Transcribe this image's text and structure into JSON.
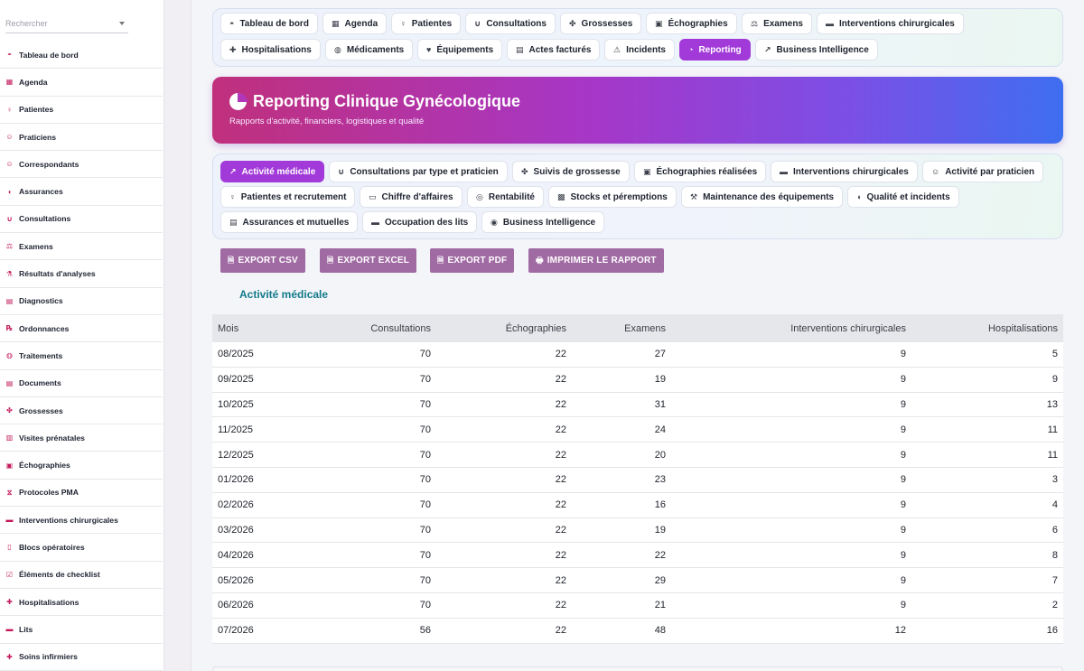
{
  "sidebar": {
    "search_placeholder": "Rechercher",
    "items": [
      {
        "label": "Tableau de bord",
        "icon": "dashboard-icon"
      },
      {
        "label": "Agenda",
        "icon": "calendar-icon"
      },
      {
        "label": "Patientes",
        "icon": "female-icon"
      },
      {
        "label": "Praticiens",
        "icon": "doctor-icon"
      },
      {
        "label": "Correspondants",
        "icon": "contact-icon"
      },
      {
        "label": "Assurances",
        "icon": "shield-icon"
      },
      {
        "label": "Consultations",
        "icon": "stethoscope-icon"
      },
      {
        "label": "Examens",
        "icon": "microscope-icon"
      },
      {
        "label": "Résultats d'analyses",
        "icon": "flask-icon"
      },
      {
        "label": "Diagnostics",
        "icon": "notes-icon"
      },
      {
        "label": "Ordonnances",
        "icon": "prescription-icon"
      },
      {
        "label": "Traitements",
        "icon": "pills-icon"
      },
      {
        "label": "Documents",
        "icon": "document-icon"
      },
      {
        "label": "Grossesses",
        "icon": "baby-icon"
      },
      {
        "label": "Visites prénatales",
        "icon": "clipboard-icon"
      },
      {
        "label": "Échographies",
        "icon": "ultrasound-icon"
      },
      {
        "label": "Protocoles PMA",
        "icon": "dna-icon"
      },
      {
        "label": "Interventions chirurgicales",
        "icon": "bed-icon"
      },
      {
        "label": "Blocs opératoires",
        "icon": "door-icon"
      },
      {
        "label": "Éléments de checklist",
        "icon": "checklist-icon"
      },
      {
        "label": "Hospitalisations",
        "icon": "hospital-icon"
      },
      {
        "label": "Lits",
        "icon": "bed-icon"
      },
      {
        "label": "Soins infirmiers",
        "icon": "nurse-icon"
      }
    ]
  },
  "topnav": {
    "items": [
      {
        "label": "Tableau de bord",
        "icon": "gauge-icon"
      },
      {
        "label": "Agenda",
        "icon": "calendar-icon"
      },
      {
        "label": "Patientes",
        "icon": "female-icon"
      },
      {
        "label": "Consultations",
        "icon": "stethoscope-icon"
      },
      {
        "label": "Grossesses",
        "icon": "baby-icon"
      },
      {
        "label": "Échographies",
        "icon": "ultrasound-icon"
      },
      {
        "label": "Examens",
        "icon": "microscope-icon"
      },
      {
        "label": "Interventions chirurgicales",
        "icon": "bed-icon"
      },
      {
        "label": "Hospitalisations",
        "icon": "hospital-icon"
      },
      {
        "label": "Médicaments",
        "icon": "pills-icon"
      },
      {
        "label": "Équipements",
        "icon": "heartbeat-icon"
      },
      {
        "label": "Actes facturés",
        "icon": "invoice-icon"
      },
      {
        "label": "Incidents",
        "icon": "warning-icon"
      },
      {
        "label": "Reporting",
        "icon": "chart-pie-icon",
        "active": true
      },
      {
        "label": "Business Intelligence",
        "icon": "chart-line-icon"
      }
    ]
  },
  "hero": {
    "title": "Reporting Clinique Gynécologique",
    "subtitle": "Rapports d'activité, financiers, logistiques et qualité",
    "icon": "chart-pie-icon"
  },
  "subnav": {
    "items": [
      {
        "label": "Activité médicale",
        "icon": "chart-line-icon",
        "active": true
      },
      {
        "label": "Consultations par type et praticien",
        "icon": "stethoscope-icon"
      },
      {
        "label": "Suivis de grossesse",
        "icon": "baby-icon"
      },
      {
        "label": "Échographies réalisées",
        "icon": "ultrasound-icon"
      },
      {
        "label": "Interventions chirurgicales",
        "icon": "bed-icon"
      },
      {
        "label": "Activité par praticien",
        "icon": "doctor-icon"
      },
      {
        "label": "Patientes et recrutement",
        "icon": "female-icon"
      },
      {
        "label": "Chiffre d'affaires",
        "icon": "money-icon"
      },
      {
        "label": "Rentabilité",
        "icon": "coins-icon"
      },
      {
        "label": "Stocks et péremptions",
        "icon": "boxes-icon"
      },
      {
        "label": "Maintenance des équipements",
        "icon": "tools-icon"
      },
      {
        "label": "Qualité et incidents",
        "icon": "shield-icon"
      },
      {
        "label": "Assurances et mutuelles",
        "icon": "invoice-icon"
      },
      {
        "label": "Occupation des lits",
        "icon": "bed-icon"
      },
      {
        "label": "Business Intelligence",
        "icon": "brain-icon"
      }
    ]
  },
  "exports": {
    "csv": "EXPORT CSV",
    "excel": "EXPORT EXCEL",
    "pdf": "EXPORT PDF",
    "print": "IMPRIMER LE RAPPORT"
  },
  "report": {
    "title": "Activité médicale",
    "columns": [
      "Mois",
      "Consultations",
      "Échographies",
      "Examens",
      "Interventions chirurgicales",
      "Hospitalisations"
    ],
    "rows": [
      [
        "08/2025",
        "70",
        "22",
        "27",
        "9",
        "5"
      ],
      [
        "09/2025",
        "70",
        "22",
        "19",
        "9",
        "9"
      ],
      [
        "10/2025",
        "70",
        "22",
        "31",
        "9",
        "13"
      ],
      [
        "11/2025",
        "70",
        "22",
        "24",
        "9",
        "11"
      ],
      [
        "12/2025",
        "70",
        "22",
        "20",
        "9",
        "11"
      ],
      [
        "01/2026",
        "70",
        "22",
        "23",
        "9",
        "3"
      ],
      [
        "02/2026",
        "70",
        "22",
        "16",
        "9",
        "4"
      ],
      [
        "03/2026",
        "70",
        "22",
        "19",
        "9",
        "6"
      ],
      [
        "04/2026",
        "70",
        "22",
        "22",
        "9",
        "8"
      ],
      [
        "05/2026",
        "70",
        "22",
        "29",
        "9",
        "7"
      ],
      [
        "06/2026",
        "70",
        "22",
        "21",
        "9",
        "2"
      ],
      [
        "07/2026",
        "56",
        "22",
        "48",
        "12",
        "16"
      ]
    ]
  },
  "colors": {
    "accent": "#a13ad8",
    "sidebar_icon": "#c2185b",
    "export_button": "#a06aa3",
    "section_title": "#137a8a"
  }
}
